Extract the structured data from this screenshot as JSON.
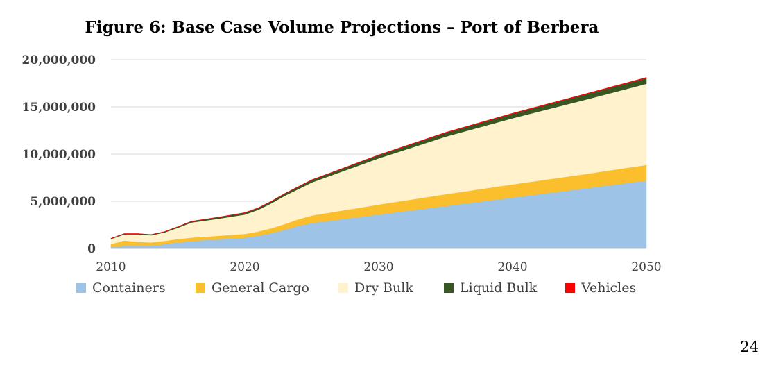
{
  "page": {
    "number": "24"
  },
  "chart_data": {
    "type": "area",
    "stacked": true,
    "title": "Figure 6: Base Case Volume Projections – Port of Berbera",
    "xlabel": "",
    "ylabel": "",
    "xlim": [
      2010,
      2050
    ],
    "ylim": [
      0,
      20000000
    ],
    "xticks": [
      {
        "value": 2010,
        "label": "2010"
      },
      {
        "value": 2020,
        "label": "2020"
      },
      {
        "value": 2030,
        "label": "2030"
      },
      {
        "value": 2040,
        "label": "2040"
      },
      {
        "value": 2050,
        "label": "2050"
      }
    ],
    "yticks": [
      {
        "value": 0,
        "label": "0"
      },
      {
        "value": 5000000,
        "label": "5,000,000"
      },
      {
        "value": 10000000,
        "label": "10,000,000"
      },
      {
        "value": 15000000,
        "label": "15,000,000"
      },
      {
        "value": 20000000,
        "label": "20,000,000"
      }
    ],
    "grid": true,
    "legend_position": "bottom",
    "x": [
      2010,
      2011,
      2012,
      2013,
      2014,
      2015,
      2016,
      2018,
      2020,
      2021,
      2022,
      2023,
      2024,
      2025,
      2030,
      2035,
      2040,
      2045,
      2050
    ],
    "series": [
      {
        "name": "Containers",
        "color": "#9dc3e6",
        "values": [
          150000,
          300000,
          300000,
          300000,
          450000,
          650000,
          800000,
          1000000,
          1150000,
          1350000,
          1650000,
          2000000,
          2400000,
          2700000,
          3600000,
          4500000,
          5400000,
          6300000,
          7200000
        ]
      },
      {
        "name": "General Cargo",
        "color": "#fbbf2d",
        "values": [
          300000,
          550000,
          400000,
          350000,
          350000,
          350000,
          350000,
          350000,
          400000,
          450000,
          500000,
          600000,
          700000,
          800000,
          1050000,
          1250000,
          1400000,
          1500000,
          1650000
        ]
      },
      {
        "name": "Dry Bulk",
        "color": "#fff2cc",
        "values": [
          550000,
          650000,
          800000,
          750000,
          900000,
          1200000,
          1600000,
          1800000,
          2050000,
          2300000,
          2650000,
          3000000,
          3200000,
          3500000,
          4900000,
          6100000,
          7000000,
          7800000,
          8600000
        ]
      },
      {
        "name": "Liquid Bulk",
        "color": "#385723",
        "values": [
          60000,
          70000,
          70000,
          70000,
          80000,
          100000,
          120000,
          150000,
          180000,
          190000,
          200000,
          220000,
          240000,
          250000,
          330000,
          400000,
          470000,
          550000,
          600000
        ]
      },
      {
        "name": "Vehicles",
        "color": "#ff0000",
        "values": [
          10000,
          10000,
          10000,
          10000,
          10000,
          10000,
          10000,
          15000,
          20000,
          20000,
          20000,
          20000,
          25000,
          25000,
          35000,
          45000,
          55000,
          60000,
          70000
        ]
      }
    ]
  }
}
